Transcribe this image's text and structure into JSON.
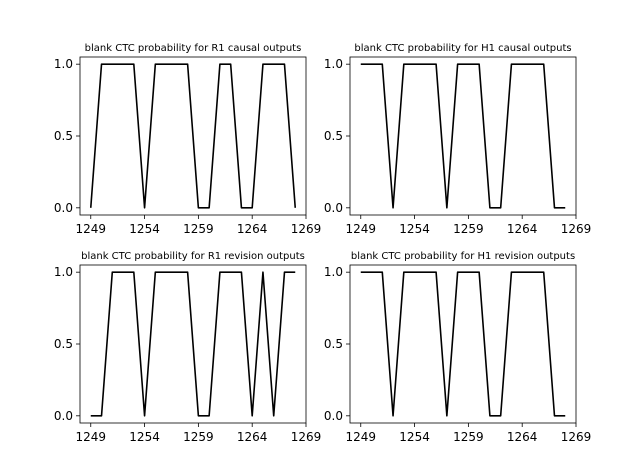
{
  "chart_data": [
    {
      "type": "line",
      "title": "blank CTC probability for R1 causal outputs",
      "xlabel": "",
      "ylabel": "",
      "xlim": [
        1248,
        1269
      ],
      "ylim": [
        -0.05,
        1.05
      ],
      "xticks": [
        1249,
        1254,
        1259,
        1264,
        1269
      ],
      "yticks": [
        0.0,
        0.5,
        1.0
      ],
      "grid": false,
      "series": [
        {
          "x": [
            1249,
            1250,
            1251,
            1252,
            1253,
            1254,
            1255,
            1256,
            1257,
            1258,
            1259,
            1260,
            1261,
            1262,
            1263,
            1264,
            1265,
            1266,
            1267,
            1268
          ],
          "values": [
            0.0,
            1.0,
            1.0,
            1.0,
            1.0,
            0.0,
            1.0,
            1.0,
            1.0,
            1.0,
            0.0,
            0.0,
            1.0,
            1.0,
            0.0,
            0.0,
            1.0,
            1.0,
            1.0,
            0.0
          ]
        }
      ]
    },
    {
      "type": "line",
      "title": "blank CTC probability for H1 causal outputs",
      "xlabel": "",
      "ylabel": "",
      "xlim": [
        1248,
        1269
      ],
      "ylim": [
        -0.05,
        1.05
      ],
      "xticks": [
        1249,
        1254,
        1259,
        1264,
        1269
      ],
      "yticks": [
        0.0,
        0.5,
        1.0
      ],
      "grid": false,
      "series": [
        {
          "x": [
            1249,
            1250,
            1251,
            1252,
            1253,
            1254,
            1255,
            1256,
            1257,
            1258,
            1259,
            1260,
            1261,
            1262,
            1263,
            1264,
            1265,
            1266,
            1267,
            1268
          ],
          "values": [
            1.0,
            1.0,
            1.0,
            0.0,
            1.0,
            1.0,
            1.0,
            1.0,
            0.0,
            1.0,
            1.0,
            1.0,
            0.0,
            0.0,
            1.0,
            1.0,
            1.0,
            1.0,
            0.0,
            0.0
          ]
        }
      ]
    },
    {
      "type": "line",
      "title": "blank CTC probability for R1 revision outputs",
      "xlabel": "",
      "ylabel": "",
      "xlim": [
        1248,
        1269
      ],
      "ylim": [
        -0.05,
        1.05
      ],
      "xticks": [
        1249,
        1254,
        1259,
        1264,
        1269
      ],
      "yticks": [
        0.0,
        0.5,
        1.0
      ],
      "grid": false,
      "series": [
        {
          "x": [
            1249,
            1250,
            1251,
            1252,
            1253,
            1254,
            1255,
            1256,
            1257,
            1258,
            1259,
            1260,
            1261,
            1262,
            1263,
            1264,
            1265,
            1266,
            1267,
            1268
          ],
          "values": [
            0.0,
            0.0,
            1.0,
            1.0,
            1.0,
            0.0,
            1.0,
            1.0,
            1.0,
            1.0,
            0.0,
            0.0,
            1.0,
            1.0,
            1.0,
            0.0,
            1.0,
            0.0,
            1.0,
            1.0
          ]
        }
      ]
    },
    {
      "type": "line",
      "title": "blank CTC probability for H1 revision outputs",
      "xlabel": "",
      "ylabel": "",
      "xlim": [
        1248,
        1269
      ],
      "ylim": [
        -0.05,
        1.05
      ],
      "xticks": [
        1249,
        1254,
        1259,
        1264,
        1269
      ],
      "yticks": [
        0.0,
        0.5,
        1.0
      ],
      "grid": false,
      "series": [
        {
          "x": [
            1249,
            1250,
            1251,
            1252,
            1253,
            1254,
            1255,
            1256,
            1257,
            1258,
            1259,
            1260,
            1261,
            1262,
            1263,
            1264,
            1265,
            1266,
            1267,
            1268
          ],
          "values": [
            1.0,
            1.0,
            1.0,
            0.0,
            1.0,
            1.0,
            1.0,
            1.0,
            0.0,
            1.0,
            1.0,
            1.0,
            0.0,
            0.0,
            1.0,
            1.0,
            1.0,
            1.0,
            0.0,
            0.0
          ]
        }
      ]
    }
  ],
  "colors": {
    "line": "#000000",
    "frame": "#000000",
    "background": "#ffffff"
  }
}
